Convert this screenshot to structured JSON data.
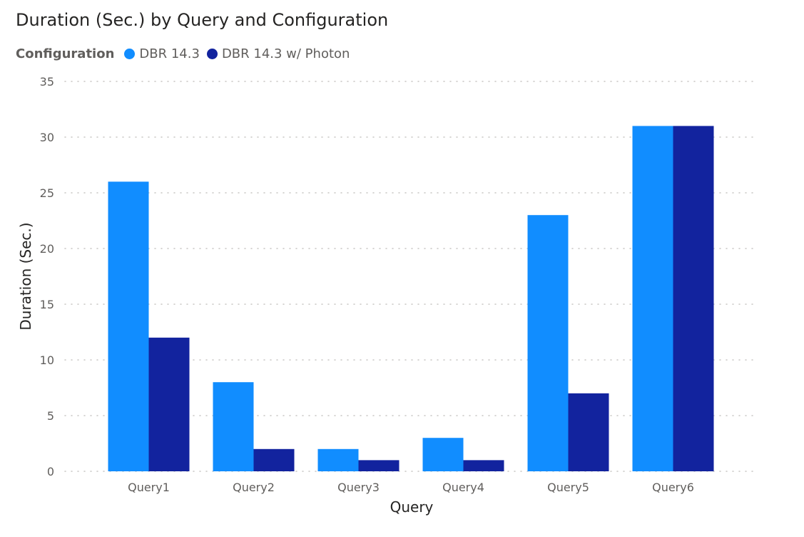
{
  "chart_data": {
    "type": "bar",
    "title": "Duration (Sec.) by Query and Configuration",
    "xlabel": "Query",
    "ylabel": "Duration (Sec.)",
    "categories": [
      "Query1",
      "Query2",
      "Query3",
      "Query4",
      "Query5",
      "Query6"
    ],
    "series": [
      {
        "name": "DBR 14.3",
        "color": "#118dff",
        "values": [
          26,
          8,
          2,
          3,
          23,
          31
        ]
      },
      {
        "name": "DBR 14.3 w/ Photon",
        "color": "#12239e",
        "values": [
          12,
          2,
          1,
          1,
          7,
          31
        ]
      }
    ],
    "ylim": [
      0,
      35
    ],
    "yticks": [
      0,
      5,
      10,
      15,
      20,
      25,
      30,
      35
    ],
    "legend": {
      "title": "Configuration",
      "position": "top-left"
    },
    "grid": true
  }
}
